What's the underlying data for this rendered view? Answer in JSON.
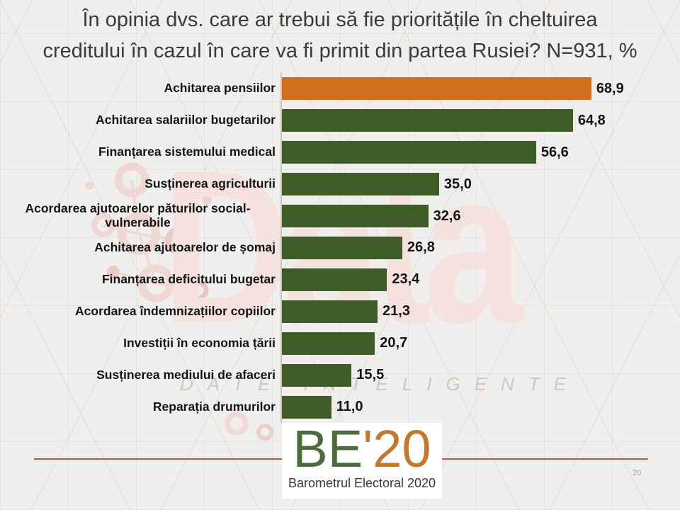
{
  "title": {
    "text": "În opinia dvs. care ar trebui să fie prioritățile în cheltuirea creditului în cazul în care va fi primit din partea Rusiei? N=931, %",
    "lines": [
      "În opinia dvs. care ar trebui să fie prioritățile în cheltuirea",
      "creditului în cazul în care va fi primit din partea Rusiei? N=931, %"
    ]
  },
  "chart_data": {
    "type": "bar",
    "orientation": "horizontal",
    "title": "În opinia dvs. care ar trebui să fie prioritățile în cheltuirea creditului în cazul în care va fi primit din partea Rusiei? N=931, %",
    "xlabel": "",
    "ylabel": "",
    "xlim": [
      0,
      70
    ],
    "grid": false,
    "legend": "none",
    "categories": [
      "Achitarea pensiilor",
      "Achitarea salariilor bugetarilor",
      "Finanțarea sistemului medical",
      "Susținerea agriculturii",
      "Acordarea ajutoarelor păturilor social-vulnerabile",
      "Achitarea ajutoarelor de șomaj",
      "Finanțarea deficitului bugetar",
      "Acordarea îndemnizațiilor copiilor",
      "Investiții în economia țării",
      "Susținerea mediului de afaceri",
      "Reparația drumurilor"
    ],
    "values": [
      68.9,
      64.8,
      56.6,
      35.0,
      32.6,
      26.8,
      23.4,
      21.3,
      20.7,
      15.5,
      11.0
    ],
    "value_labels": [
      "68,9",
      "64,8",
      "56,6",
      "35,0",
      "32,6",
      "26,8",
      "23,4",
      "21,3",
      "20,7",
      "15,5",
      "11,0"
    ],
    "highlight_index": 0,
    "colors": {
      "highlight_bar": "#D06E1E",
      "default_bar": "#3E5C26",
      "axis_line": "#C8C5C2",
      "label_text": "#141414"
    }
  },
  "watermark": {
    "logo_text": "Data",
    "tagline": "DATE INTELIGENTE",
    "color": "#F5E1DE"
  },
  "footer": {
    "logo": {
      "be": "BE",
      "apostrophe": "'",
      "year": "20",
      "caption": "Barometrul Electoral 2020",
      "green": "#4C6B3E",
      "orange": "#C5772F"
    },
    "divider_color": "#AC5A50",
    "page_number": "20"
  }
}
